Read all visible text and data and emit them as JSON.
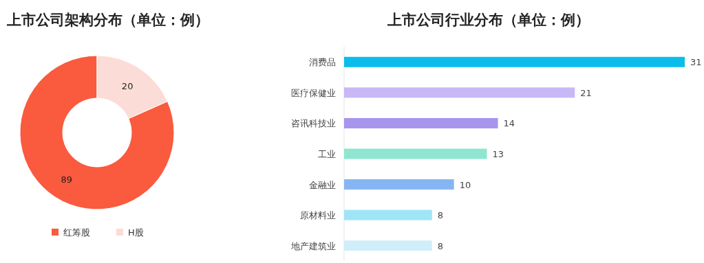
{
  "chart_data": [
    {
      "type": "donut",
      "title": "上市公司架构分布（单位：例）",
      "categories": [
        "红筹股",
        "H股"
      ],
      "values": [
        89,
        20
      ],
      "colors": [
        "#fa5a3e",
        "#fcdcd6"
      ],
      "data_labels": true,
      "legend": "bottom"
    },
    {
      "type": "bar",
      "title": "上市公司行业分布（单位：例）",
      "orientation": "horizontal",
      "categories": [
        "消费品",
        "医疗保健业",
        "咨讯科技业",
        "工业",
        "金融业",
        "原材料业",
        "地产建筑业"
      ],
      "values": [
        31,
        21,
        14,
        13,
        10,
        8,
        8
      ],
      "colors": [
        "#0bbdea",
        "#c8b8f5",
        "#a694ee",
        "#8ee6d1",
        "#85b6f3",
        "#9fe5f7",
        "#d0eefa"
      ],
      "data_labels": true
    }
  ]
}
